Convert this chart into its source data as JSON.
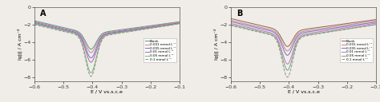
{
  "panel_A": {
    "label": "A",
    "legend_entries": [
      "Blank",
      "0.001 mmol L⁻¹",
      "0.005 mmol L⁻¹",
      "0.01 mmol L⁻¹",
      "0.05 mmol L⁻¹",
      "0.1 mmol L⁻¹"
    ],
    "colors": [
      "#4a9a8a",
      "#d08080",
      "#7070c8",
      "#b060b0",
      "#70b870",
      "#909090"
    ],
    "linestyles": [
      "-",
      "-",
      "-",
      "-",
      "-",
      "--"
    ],
    "i_corr_logs": [
      -3.05,
      -3.15,
      -3.25,
      -3.35,
      -3.4,
      -3.5
    ],
    "dip_depths": [
      -4.8,
      -5.2,
      -5.8,
      -6.3,
      -7.5,
      -7.9
    ],
    "ba": [
      0.22,
      0.21,
      0.21,
      0.2,
      0.2,
      0.19
    ],
    "bc": [
      0.13,
      0.13,
      0.13,
      0.13,
      0.13,
      0.13
    ],
    "xlabel": "E / V vs.s.c.e",
    "ylabel": "lg|j| / A cm⁻²",
    "xlim": [
      -0.6,
      -0.1
    ],
    "ylim": [
      -8.5,
      0
    ],
    "xticks": [
      -0.6,
      -0.5,
      -0.4,
      -0.3,
      -0.2,
      -0.1
    ],
    "yticks": [
      -8,
      -6,
      -4,
      -2,
      0
    ],
    "corrosion_potential": -0.405
  },
  "panel_B": {
    "label": "B",
    "legend_entries": [
      "Blank",
      "0.001 mmol L⁻¹",
      "0.005 mmol L⁻¹",
      "0.01 mmol L⁻¹",
      "0.05 mmol L⁻¹",
      "0.1 mmol L⁻¹"
    ],
    "colors": [
      "#8b6050",
      "#d08080",
      "#7070c8",
      "#c070c0",
      "#70a870",
      "#909090"
    ],
    "linestyles": [
      "-",
      "-",
      "-",
      "-",
      "-",
      "--"
    ],
    "i_corr_logs": [
      -2.8,
      -3.0,
      -3.15,
      -3.35,
      -3.5,
      -3.6
    ],
    "dip_depths": [
      -4.5,
      -5.0,
      -5.5,
      -6.5,
      -7.2,
      -8.0
    ],
    "ba": [
      0.22,
      0.21,
      0.21,
      0.2,
      0.2,
      0.19
    ],
    "bc": [
      0.13,
      0.13,
      0.13,
      0.13,
      0.13,
      0.13
    ],
    "xlabel": "E / V vs.s.c.e",
    "ylabel": "lg|j| / A cm⁻²",
    "xlim": [
      -0.6,
      -0.1
    ],
    "ylim": [
      -8.5,
      0
    ],
    "xticks": [
      -0.6,
      -0.5,
      -0.4,
      -0.3,
      -0.2,
      -0.1
    ],
    "yticks": [
      -8,
      -6,
      -4,
      -2,
      0
    ],
    "corrosion_potential": -0.405
  },
  "figure_background": "#f0ede8"
}
